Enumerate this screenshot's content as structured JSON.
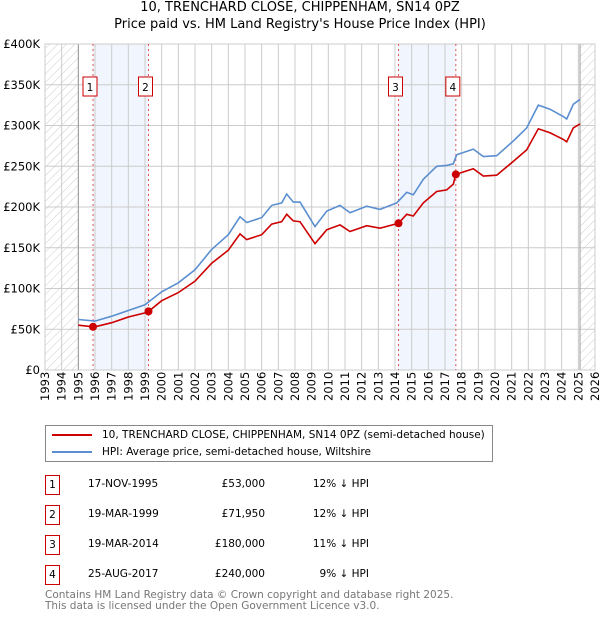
{
  "chart_data": {
    "type": "line",
    "title": "10, TRENCHARD CLOSE, CHIPPENHAM, SN14 0PZ",
    "subtitle": "Price paid vs. HM Land Registry's House Price Index (HPI)",
    "xlim": [
      1993,
      2026
    ],
    "ylim": [
      0,
      400000
    ],
    "x_ticks": [
      "1993",
      "1994",
      "1995",
      "1996",
      "1997",
      "1998",
      "1999",
      "2000",
      "2001",
      "2002",
      "2003",
      "2004",
      "2005",
      "2006",
      "2007",
      "2008",
      "2009",
      "2010",
      "2011",
      "2012",
      "2013",
      "2014",
      "2015",
      "2016",
      "2017",
      "2018",
      "2019",
      "2020",
      "2021",
      "2022",
      "2023",
      "2024",
      "2025",
      "2026"
    ],
    "y_ticks": [
      {
        "value": 0,
        "label": "£0"
      },
      {
        "value": 50000,
        "label": "£50K"
      },
      {
        "value": 100000,
        "label": "£100K"
      },
      {
        "value": 150000,
        "label": "£150K"
      },
      {
        "value": 200000,
        "label": "£200K"
      },
      {
        "value": 250000,
        "label": "£250K"
      },
      {
        "value": 300000,
        "label": "£300K"
      },
      {
        "value": 350000,
        "label": "£350K"
      },
      {
        "value": 400000,
        "label": "£400K"
      }
    ],
    "grid": true,
    "hatched_ranges": [
      [
        1993,
        1995
      ],
      [
        2025.1,
        2026
      ]
    ],
    "shaded_ranges": [
      [
        1995.88,
        1999.21
      ],
      [
        2014.21,
        2017.65
      ]
    ],
    "series": [
      {
        "name": "10, TRENCHARD CLOSE, CHIPPENHAM, SN14 0PZ (semi-detached house)",
        "color": "#cc0000",
        "x": [
          1995.0,
          1995.88,
          1996,
          1997,
          1998,
          1999,
          1999.21,
          2000,
          2001,
          2002,
          2003,
          2004,
          2004.7,
          2005.1,
          2006,
          2006.6,
          2007.2,
          2007.5,
          2007.9,
          2008.3,
          2009.2,
          2009.9,
          2010.7,
          2011.3,
          2012.3,
          2013.1,
          2014.21,
          2014.7,
          2015.1,
          2015.7,
          2016.5,
          2017.1,
          2017.5,
          2017.65,
          2018.7,
          2019.3,
          2020.1,
          2021.1,
          2021.9,
          2022.6,
          2023.3,
          2024.1,
          2024.3,
          2024.7,
          2025.1
        ],
        "y": [
          55000,
          53000,
          53000,
          58000,
          65000,
          70000,
          71950,
          85000,
          95000,
          109000,
          131000,
          147000,
          167000,
          160000,
          166000,
          179000,
          182000,
          191000,
          183000,
          182000,
          155000,
          172000,
          178000,
          170000,
          177000,
          174000,
          180000,
          191000,
          189000,
          205000,
          219000,
          221000,
          228000,
          240000,
          247000,
          238000,
          239000,
          256000,
          270000,
          296000,
          291000,
          283000,
          280000,
          297000,
          302000
        ]
      },
      {
        "name": "HPI: Average price, semi-detached house, Wiltshire",
        "color": "#5b8fd0",
        "x": [
          1995.0,
          1996,
          1997,
          1998,
          1999,
          2000,
          2001,
          2002,
          2003,
          2004,
          2004.7,
          2005.1,
          2006,
          2006.6,
          2007.2,
          2007.5,
          2007.9,
          2008.3,
          2009.2,
          2009.9,
          2010.7,
          2011.3,
          2012.3,
          2013.1,
          2014.1,
          2014.7,
          2015.1,
          2015.7,
          2016.5,
          2017.1,
          2017.5,
          2017.7,
          2018.7,
          2019.3,
          2020.1,
          2021.1,
          2021.9,
          2022.6,
          2023.3,
          2024.1,
          2024.3,
          2024.7,
          2025.1
        ],
        "y": [
          62000,
          60000,
          66000,
          73000,
          80000,
          96000,
          107000,
          123000,
          148000,
          166000,
          188000,
          181000,
          187000,
          202000,
          205000,
          216000,
          206000,
          206000,
          176000,
          195000,
          202000,
          193000,
          201000,
          197000,
          205000,
          218000,
          215000,
          234000,
          250000,
          251000,
          253000,
          264000,
          271000,
          262000,
          263000,
          281000,
          297000,
          325000,
          320000,
          311000,
          308000,
          326000,
          332000
        ]
      }
    ],
    "sales": [
      {
        "label": "1",
        "x": 1995.88,
        "y": 53000,
        "date": "17-NOV-1995",
        "price": "£53,000",
        "hpi": "12% ↓ HPI"
      },
      {
        "label": "2",
        "x": 1999.21,
        "y": 71950,
        "date": "19-MAR-1999",
        "price": "£71,950",
        "hpi": "12% ↓ HPI"
      },
      {
        "label": "3",
        "x": 2014.21,
        "y": 180000,
        "date": "19-MAR-2014",
        "price": "£180,000",
        "hpi": "11% ↓ HPI"
      },
      {
        "label": "4",
        "x": 2017.65,
        "y": 240000,
        "date": "25-AUG-2017",
        "price": "£240,000",
        "hpi": "9% ↓ HPI"
      }
    ]
  },
  "footer": {
    "line1": "Contains HM Land Registry data © Crown copyright and database right 2025.",
    "line2": "This data is licensed under the Open Government Licence v3.0."
  }
}
